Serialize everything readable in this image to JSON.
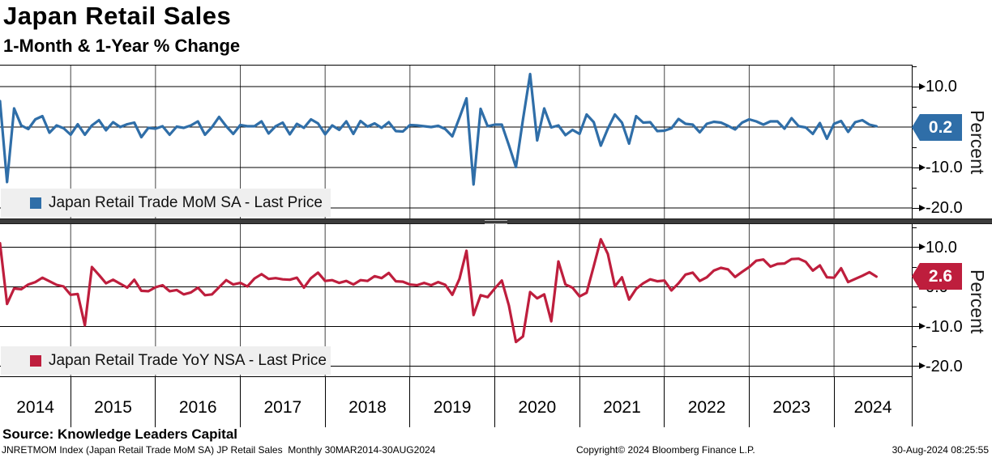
{
  "header": {
    "title": "Japan Retail Sales",
    "subtitle": "1-Month & 1-Year % Change"
  },
  "axis": {
    "ylabel": "Percent",
    "ytick_values": [
      10,
      0,
      -10,
      -20
    ],
    "ytick_labels": [
      "10.0",
      "0.0",
      "-10.0",
      "-20.0"
    ],
    "minor_ytick_values": [
      15,
      5,
      -5,
      -15
    ],
    "years": [
      2014,
      2015,
      2016,
      2017,
      2018,
      2019,
      2020,
      2021,
      2022,
      2023,
      2024
    ]
  },
  "colors": {
    "mom_blue": "#2F6EA8",
    "yoy_red": "#BE1E3D",
    "legend_bg": "#efefef",
    "separator_gray": "#3c3c3c"
  },
  "chart_data": [
    {
      "type": "line",
      "name": "Japan Retail Trade MoM SA",
      "legend": "Japan Retail Trade MoM SA - Last Price",
      "color": "#2F6EA8",
      "last_price": 0.2,
      "frequency": "monthly",
      "x_start": "2014-03",
      "x_end": "2024-07",
      "ylim": [
        -22.6,
        15.4
      ],
      "values": [
        6.4,
        -13.6,
        4.6,
        0.4,
        -0.5,
        1.9,
        2.7,
        -1.4,
        0.4,
        -0.3,
        -1.9,
        0.7,
        -1.9,
        0.4,
        1.7,
        -0.8,
        1.2,
        0.0,
        0.7,
        1.1,
        -2.5,
        -0.2,
        -0.4,
        0.2,
        -1.9,
        0.1,
        -0.2,
        0.4,
        1.4,
        -1.9,
        0.0,
        2.5,
        0.2,
        -1.7,
        0.5,
        0.2,
        0.2,
        1.4,
        -1.6,
        0.2,
        1.1,
        -1.8,
        0.8,
        -0.2,
        1.9,
        0.9,
        -1.8,
        0.4,
        -0.7,
        1.4,
        -1.7,
        1.5,
        0.1,
        0.9,
        -0.2,
        1.2,
        -1.0,
        -1.1,
        0.5,
        0.4,
        0.2,
        0.0,
        0.3,
        -0.5,
        -2.3,
        2.3,
        7.1,
        -14.2,
        4.5,
        0.2,
        0.6,
        0.6,
        -4.5,
        -9.9,
        1.9,
        13.1,
        -3.3,
        4.6,
        -0.1,
        0.4,
        -2.0,
        -0.7,
        -1.7,
        3.1,
        1.2,
        -4.6,
        -0.4,
        3.1,
        1.1,
        -4.1,
        2.7,
        1.1,
        1.2,
        -1.0,
        -0.9,
        -0.3,
        2.0,
        0.8,
        0.6,
        -1.3,
        0.8,
        1.3,
        1.1,
        0.3,
        -0.6,
        1.1,
        1.9,
        1.4,
        0.6,
        1.4,
        1.4,
        -0.4,
        2.2,
        0.2,
        -0.1,
        -1.7,
        1.0,
        -2.9,
        0.8,
        1.5,
        -1.2,
        1.2,
        1.7,
        0.6,
        0.2
      ]
    },
    {
      "type": "line",
      "name": "Japan Retail Trade YoY NSA",
      "legend": "Japan Retail Trade YoY NSA - Last Price",
      "color": "#BE1E3D",
      "last_price": 2.6,
      "frequency": "monthly",
      "x_start": "2014-03",
      "x_end": "2024-07",
      "ylim": [
        -22.7,
        15.8
      ],
      "values": [
        11.0,
        -4.3,
        -0.4,
        -0.6,
        0.6,
        1.2,
        2.3,
        1.4,
        0.5,
        0.1,
        -2.0,
        -1.8,
        -9.7,
        5.0,
        3.0,
        0.9,
        1.8,
        0.8,
        -0.2,
        1.8,
        -1.0,
        -1.1,
        -0.1,
        0.4,
        -1.1,
        -0.8,
        -1.9,
        -1.4,
        -0.2,
        -2.1,
        -1.9,
        -0.1,
        1.7,
        0.6,
        1.0,
        0.1,
        2.1,
        3.2,
        2.0,
        2.2,
        1.9,
        1.8,
        2.3,
        -0.2,
        2.2,
        3.6,
        1.5,
        1.7,
        1.0,
        1.5,
        0.6,
        1.7,
        1.5,
        2.7,
        2.2,
        3.5,
        1.4,
        1.3,
        0.6,
        0.4,
        1.0,
        0.4,
        1.2,
        0.5,
        -2.0,
        2.0,
        9.1,
        -7.1,
        -2.1,
        -2.6,
        -0.4,
        1.6,
        -4.7,
        -13.9,
        -12.5,
        -1.3,
        -2.9,
        -1.9,
        -8.7,
        6.4,
        0.6,
        -0.2,
        -2.4,
        -1.5,
        5.2,
        12.0,
        8.3,
        0.1,
        2.4,
        -3.2,
        -0.5,
        0.9,
        1.9,
        1.4,
        1.6,
        -0.9,
        0.9,
        3.1,
        3.6,
        1.5,
        2.4,
        4.1,
        4.8,
        4.4,
        2.5,
        3.8,
        5.0,
        6.6,
        6.9,
        5.1,
        5.8,
        5.9,
        7.0,
        7.1,
        6.3,
        4.1,
        5.4,
        2.4,
        2.3,
        4.7,
        1.2,
        2.0,
        2.8,
        3.7,
        2.6
      ]
    }
  ],
  "source_line": "Source: Knowledge Leaders Capital",
  "footer": {
    "left": "JNRETMOM Index (Japan Retail Trade MoM SA) JP Retail Sales  Monthly 30MAR2014-30AUG2024",
    "center": "Copyright© 2024 Bloomberg Finance L.P.",
    "right": "30-Aug-2024 08:25:55"
  }
}
